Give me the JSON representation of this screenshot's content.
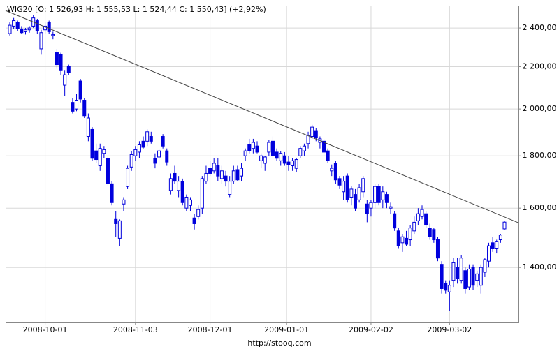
{
  "chart_data": {
    "type": "candlestick",
    "title": "WIG20 [O: 1 526,93  H: 1 555,53  L: 1 524,44  C: 1 550,43] (+2,92%)",
    "footer": "http://stooq.com",
    "up_color": "#ffffff",
    "down_color": "#0000dd",
    "edge_color": "#0000dd",
    "trendline_color": "#444444",
    "log_scale": true,
    "grid": true,
    "ylim": [
      1237,
      2524
    ],
    "yticks": [
      {
        "value": 1400,
        "label": "1 400,00"
      },
      {
        "value": 1600,
        "label": "1 600,00"
      },
      {
        "value": 1800,
        "label": "1 800,00"
      },
      {
        "value": 2000,
        "label": "2 000,00"
      },
      {
        "value": 2200,
        "label": "2 200,00"
      },
      {
        "value": 2400,
        "label": "2 400,00"
      }
    ],
    "xticks": [
      "2008-10-01",
      "2008-11-03",
      "2008-12-01",
      "2009-01-01",
      "2009-02-02",
      "2009-03-02"
    ],
    "trendline": [
      2496,
      1548
    ],
    "x": [
      "2008-09-18",
      "2008-09-19",
      "2008-09-22",
      "2008-09-23",
      "2008-09-24",
      "2008-09-25",
      "2008-09-26",
      "2008-09-29",
      "2008-09-30",
      "2008-10-01",
      "2008-10-02",
      "2008-10-03",
      "2008-10-06",
      "2008-10-07",
      "2008-10-08",
      "2008-10-09",
      "2008-10-10",
      "2008-10-13",
      "2008-10-14",
      "2008-10-15",
      "2008-10-16",
      "2008-10-17",
      "2008-10-20",
      "2008-10-21",
      "2008-10-22",
      "2008-10-23",
      "2008-10-24",
      "2008-10-27",
      "2008-10-28",
      "2008-10-29",
      "2008-10-30",
      "2008-10-31",
      "2008-11-03",
      "2008-11-04",
      "2008-11-05",
      "2008-11-06",
      "2008-11-07",
      "2008-11-10",
      "2008-11-12",
      "2008-11-13",
      "2008-11-14",
      "2008-11-17",
      "2008-11-18",
      "2008-11-19",
      "2008-11-20",
      "2008-11-21",
      "2008-11-24",
      "2008-11-25",
      "2008-11-26",
      "2008-11-27",
      "2008-11-28",
      "2008-12-01",
      "2008-12-02",
      "2008-12-03",
      "2008-12-04",
      "2008-12-05",
      "2008-12-08",
      "2008-12-09",
      "2008-12-10",
      "2008-12-11",
      "2008-12-12",
      "2008-12-15",
      "2008-12-16",
      "2008-12-17",
      "2008-12-18",
      "2008-12-19",
      "2008-12-22",
      "2008-12-23",
      "2008-12-29",
      "2008-12-30",
      "2008-12-31",
      "2009-01-02",
      "2009-01-05",
      "2009-01-06",
      "2009-01-07",
      "2009-01-08",
      "2009-01-09",
      "2009-01-12",
      "2009-01-13",
      "2009-01-14",
      "2009-01-15",
      "2009-01-16",
      "2009-01-19",
      "2009-01-20",
      "2009-01-21",
      "2009-01-22",
      "2009-01-23",
      "2009-01-26",
      "2009-01-27",
      "2009-01-28",
      "2009-01-29",
      "2009-01-30",
      "2009-02-02",
      "2009-02-03",
      "2009-02-04",
      "2009-02-05",
      "2009-02-06",
      "2009-02-09",
      "2009-02-10",
      "2009-02-11",
      "2009-02-12",
      "2009-02-13",
      "2009-02-16",
      "2009-02-17",
      "2009-02-18",
      "2009-02-19",
      "2009-02-20",
      "2009-02-23",
      "2009-02-24",
      "2009-02-25",
      "2009-02-26",
      "2009-02-27",
      "2009-03-02",
      "2009-03-03",
      "2009-03-04",
      "2009-03-05",
      "2009-03-06",
      "2009-03-09",
      "2009-03-10",
      "2009-03-11",
      "2009-03-12",
      "2009-03-13",
      "2009-03-16",
      "2009-03-17",
      "2009-03-18",
      "2009-03-19",
      "2009-03-20"
    ],
    "open": [
      2370,
      2410,
      2430,
      2395,
      2380,
      2390,
      2410,
      2440,
      2290,
      2390,
      2430,
      2360,
      2270,
      2260,
      2110,
      2200,
      2030,
      2000,
      2130,
      2040,
      1880,
      1910,
      1820,
      1760,
      1810,
      1790,
      1690,
      1560,
      1495,
      1615,
      1680,
      1755,
      1800,
      1815,
      1860,
      1860,
      1880,
      1790,
      1795,
      1880,
      1820,
      1665,
      1730,
      1665,
      1700,
      1600,
      1610,
      1565,
      1570,
      1600,
      1700,
      1750,
      1740,
      1760,
      1710,
      1720,
      1650,
      1700,
      1745,
      1720,
      1800,
      1845,
      1830,
      1840,
      1780,
      1770,
      1815,
      1860,
      1815,
      1780,
      1800,
      1775,
      1760,
      1750,
      1800,
      1820,
      1850,
      1880,
      1905,
      1855,
      1860,
      1820,
      1740,
      1770,
      1710,
      1660,
      1720,
      1640,
      1650,
      1630,
      1660,
      1615,
      1600,
      1620,
      1680,
      1630,
      1650,
      1600,
      1580,
      1520,
      1480,
      1495,
      1490,
      1520,
      1555,
      1570,
      1580,
      1530,
      1525,
      1490,
      1410,
      1350,
      1325,
      1360,
      1400,
      1360,
      1390,
      1340,
      1400,
      1360,
      1345,
      1385,
      1420,
      1480,
      1460,
      1490,
      1526.93
    ],
    "high": [
      2430,
      2455,
      2440,
      2410,
      2400,
      2410,
      2470,
      2450,
      2390,
      2430,
      2440,
      2380,
      2290,
      2270,
      2180,
      2210,
      2050,
      2070,
      2140,
      2050,
      1980,
      1920,
      1850,
      1850,
      1840,
      1800,
      1700,
      1590,
      1560,
      1640,
      1760,
      1820,
      1840,
      1860,
      1880,
      1910,
      1900,
      1810,
      1830,
      1890,
      1830,
      1730,
      1760,
      1720,
      1710,
      1650,
      1640,
      1580,
      1610,
      1720,
      1760,
      1780,
      1790,
      1790,
      1760,
      1740,
      1720,
      1760,
      1760,
      1770,
      1830,
      1870,
      1870,
      1860,
      1810,
      1800,
      1865,
      1880,
      1830,
      1820,
      1815,
      1800,
      1790,
      1790,
      1840,
      1850,
      1900,
      1930,
      1915,
      1880,
      1870,
      1830,
      1765,
      1780,
      1720,
      1720,
      1730,
      1680,
      1670,
      1690,
      1720,
      1630,
      1630,
      1690,
      1690,
      1680,
      1660,
      1620,
      1590,
      1530,
      1510,
      1520,
      1540,
      1570,
      1600,
      1610,
      1590,
      1545,
      1530,
      1500,
      1420,
      1360,
      1360,
      1430,
      1430,
      1440,
      1400,
      1410,
      1410,
      1390,
      1410,
      1430,
      1480,
      1500,
      1490,
      1510,
      1555.53
    ],
    "low": [
      2360,
      2395,
      2385,
      2370,
      2365,
      2375,
      2400,
      2370,
      2260,
      2370,
      2370,
      2340,
      2190,
      2160,
      2060,
      2160,
      1980,
      1990,
      2030,
      1960,
      1860,
      1780,
      1770,
      1740,
      1790,
      1680,
      1610,
      1500,
      1470,
      1590,
      1670,
      1740,
      1780,
      1790,
      1830,
      1840,
      1850,
      1750,
      1760,
      1830,
      1760,
      1650,
      1690,
      1640,
      1610,
      1590,
      1590,
      1525,
      1560,
      1580,
      1690,
      1720,
      1730,
      1700,
      1690,
      1680,
      1640,
      1690,
      1700,
      1700,
      1780,
      1810,
      1810,
      1810,
      1750,
      1740,
      1800,
      1790,
      1780,
      1760,
      1760,
      1740,
      1740,
      1735,
      1790,
      1800,
      1830,
      1870,
      1860,
      1830,
      1800,
      1770,
      1720,
      1690,
      1670,
      1630,
      1620,
      1610,
      1590,
      1620,
      1640,
      1550,
      1570,
      1600,
      1610,
      1600,
      1600,
      1580,
      1520,
      1460,
      1450,
      1470,
      1470,
      1510,
      1540,
      1560,
      1530,
      1490,
      1480,
      1420,
      1320,
      1320,
      1270,
      1340,
      1350,
      1350,
      1320,
      1330,
      1330,
      1340,
      1320,
      1370,
      1400,
      1450,
      1445,
      1480,
      1524.44
    ],
    "close": [
      2415,
      2440,
      2395,
      2375,
      2390,
      2400,
      2455,
      2385,
      2375,
      2410,
      2380,
      2365,
      2210,
      2180,
      2160,
      2170,
      1990,
      2040,
      2045,
      1970,
      1960,
      1790,
      1785,
      1830,
      1825,
      1690,
      1620,
      1545,
      1555,
      1630,
      1750,
      1805,
      1825,
      1845,
      1835,
      1900,
      1860,
      1770,
      1820,
      1840,
      1775,
      1710,
      1700,
      1700,
      1620,
      1640,
      1630,
      1545,
      1595,
      1710,
      1730,
      1730,
      1770,
      1720,
      1740,
      1700,
      1700,
      1740,
      1705,
      1750,
      1820,
      1820,
      1855,
      1815,
      1800,
      1795,
      1855,
      1800,
      1790,
      1810,
      1770,
      1765,
      1780,
      1785,
      1830,
      1840,
      1885,
      1920,
      1875,
      1870,
      1815,
      1780,
      1750,
      1705,
      1685,
      1700,
      1630,
      1670,
      1600,
      1675,
      1710,
      1580,
      1620,
      1680,
      1620,
      1660,
      1620,
      1605,
      1530,
      1470,
      1500,
      1475,
      1530,
      1550,
      1580,
      1595,
      1540,
      1500,
      1490,
      1430,
      1335,
      1330,
      1345,
      1415,
      1365,
      1430,
      1335,
      1395,
      1345,
      1380,
      1400,
      1425,
      1470,
      1460,
      1485,
      1506,
      1550.43
    ]
  }
}
